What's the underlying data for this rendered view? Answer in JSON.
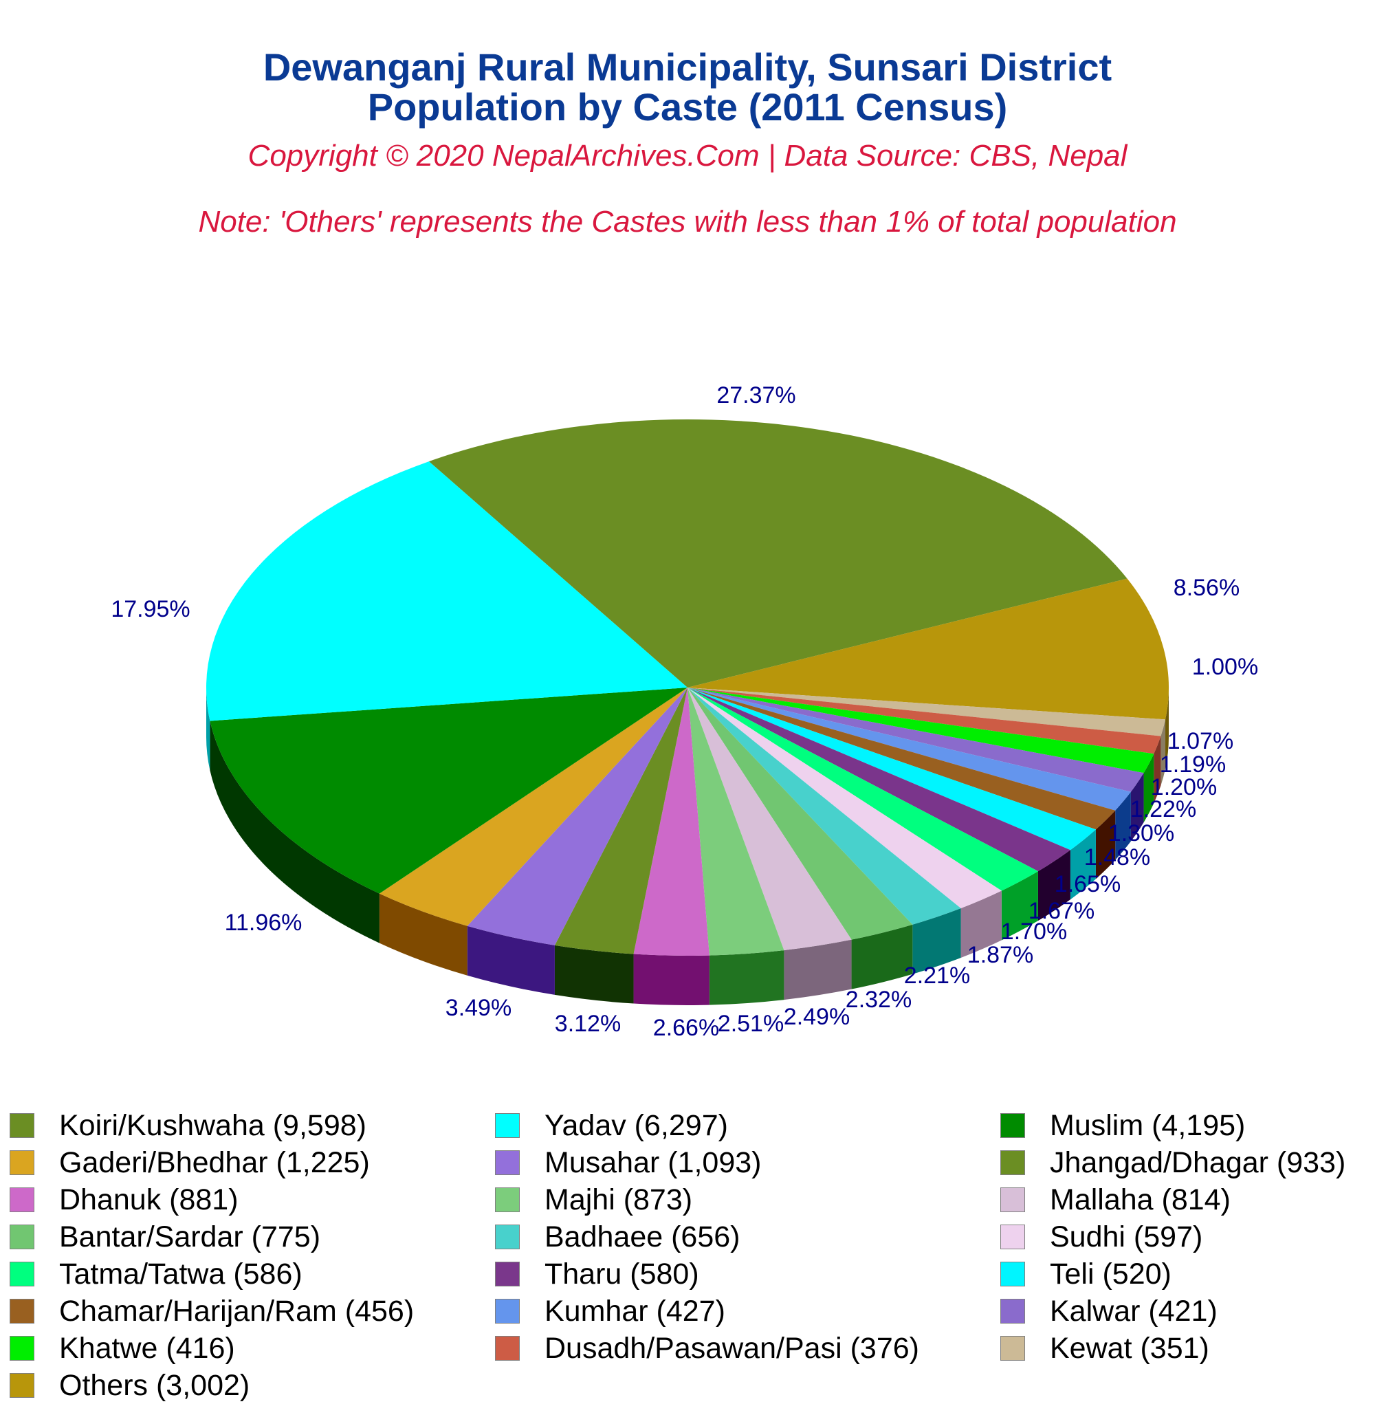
{
  "header": {
    "title_line1": "Dewanganj Rural Municipality, Sunsari District",
    "title_line2": "Population by Caste (2011 Census)",
    "copyright": "Copyright © 2020 NepalArchives.Com | Data Source: CBS, Nepal",
    "note": "Note: 'Others' represents the Castes with less than 1% of total population"
  },
  "colors": {
    "title": "#0a3a94",
    "subtitle": "#d9173e",
    "pct_label": "#00008b"
  },
  "chart_data": {
    "type": "pie",
    "style": "3d",
    "title": "Dewanganj Rural Municipality, Sunsari District Population by Caste (2011 Census)",
    "subtitle": "Copyright © 2020 NepalArchives.Com | Data Source: CBS, Nepal",
    "note": "Note: 'Others' represents the Castes with less than 1% of total population",
    "legend_position": "bottom",
    "slices": [
      {
        "label": "Koiri/Kushwaha",
        "value": 9598,
        "value_label": "9,598",
        "pct": "27.37%",
        "color": "#6b8e23",
        "side": "#3b5213"
      },
      {
        "label": "Others",
        "value": 3002,
        "value_label": "3,002",
        "pct": "8.56%",
        "color": "#b8960b",
        "side": "#6e5a07"
      },
      {
        "label": "Kewat",
        "value": 351,
        "value_label": "351",
        "pct": "1.00%",
        "color": "#ccba96",
        "side": "#8a7d63"
      },
      {
        "label": "Dusadh/Pasawan/Pasi",
        "value": 376,
        "value_label": "376",
        "pct": "1.07%",
        "color": "#cd5c45",
        "side": "#7f3426"
      },
      {
        "label": "Khatwe",
        "value": 416,
        "value_label": "416",
        "pct": "1.19%",
        "color": "#00ee00",
        "side": "#008f00"
      },
      {
        "label": "Kalwar",
        "value": 421,
        "value_label": "421",
        "pct": "1.20%",
        "color": "#8a6bcc",
        "side": "#2a1470"
      },
      {
        "label": "Kumhar",
        "value": 427,
        "value_label": "427",
        "pct": "1.22%",
        "color": "#6495ed",
        "side": "#0c3c8c"
      },
      {
        "label": "Chamar/Harijan/Ram",
        "value": 456,
        "value_label": "456",
        "pct": "1.30%",
        "color": "#996020",
        "side": "#421200"
      },
      {
        "label": "Teli",
        "value": 520,
        "value_label": "520",
        "pct": "1.48%",
        "color": "#00f5ff",
        "side": "#00a0a8"
      },
      {
        "label": "Tharu",
        "value": 580,
        "value_label": "580",
        "pct": "1.65%",
        "color": "#7a358b",
        "side": "#22002e"
      },
      {
        "label": "Tatma/Tatwa",
        "value": 586,
        "value_label": "586",
        "pct": "1.67%",
        "color": "#00ff7f",
        "side": "#00a028"
      },
      {
        "label": "Sudhi",
        "value": 597,
        "value_label": "597",
        "pct": "1.70%",
        "color": "#eed2ee",
        "side": "#957893"
      },
      {
        "label": "Badhaee",
        "value": 656,
        "value_label": "656",
        "pct": "1.87%",
        "color": "#48d1cc",
        "side": "#027873"
      },
      {
        "label": "Bantar/Sardar",
        "value": 775,
        "value_label": "775",
        "pct": "2.21%",
        "color": "#71c671",
        "side": "#1a6a1a"
      },
      {
        "label": "Mallaha",
        "value": 814,
        "value_label": "814",
        "pct": "2.32%",
        "color": "#d8bfd8",
        "side": "#7c667c"
      },
      {
        "label": "Majhi",
        "value": 873,
        "value_label": "873",
        "pct": "2.49%",
        "color": "#7ccd7c",
        "side": "#217421"
      },
      {
        "label": "Dhanuk",
        "value": 881,
        "value_label": "881",
        "pct": "2.51%",
        "color": "#cd69c9",
        "side": "#731070"
      },
      {
        "label": "Jhangad/Dhagar",
        "value": 933,
        "value_label": "933",
        "pct": "2.66%",
        "color": "#6b8e23",
        "side": "#113303"
      },
      {
        "label": "Musahar",
        "value": 1093,
        "value_label": "1,093",
        "pct": "3.12%",
        "color": "#9370db",
        "side": "#3c1780"
      },
      {
        "label": "Gaderi/Bhedhar",
        "value": 1225,
        "value_label": "1,225",
        "pct": "3.49%",
        "color": "#daa520",
        "side": "#7f4a00"
      },
      {
        "label": "Muslim",
        "value": 4195,
        "value_label": "4,195",
        "pct": "11.96%",
        "color": "#008b00",
        "side": "#003800"
      },
      {
        "label": "Yadav",
        "value": 6297,
        "value_label": "6,297",
        "pct": "17.95%",
        "color": "#00ffff",
        "side": "#00a0a8"
      }
    ]
  },
  "legend": {
    "items": [
      {
        "text": "Koiri/Kushwaha (9,598)",
        "color": "#6b8e23",
        "col": 0,
        "row": 0
      },
      {
        "text": "Yadav (6,297)",
        "color": "#00ffff",
        "col": 1,
        "row": 0
      },
      {
        "text": "Muslim (4,195)",
        "color": "#008b00",
        "col": 2,
        "row": 0
      },
      {
        "text": "Gaderi/Bhedhar (1,225)",
        "color": "#daa520",
        "col": 0,
        "row": 1
      },
      {
        "text": "Musahar (1,093)",
        "color": "#9370db",
        "col": 1,
        "row": 1
      },
      {
        "text": "Jhangad/Dhagar (933)",
        "color": "#6b8e23",
        "col": 2,
        "row": 1
      },
      {
        "text": "Dhanuk (881)",
        "color": "#cd69c9",
        "col": 0,
        "row": 2
      },
      {
        "text": "Majhi (873)",
        "color": "#7ccd7c",
        "col": 1,
        "row": 2
      },
      {
        "text": "Mallaha (814)",
        "color": "#d8bfd8",
        "col": 2,
        "row": 2
      },
      {
        "text": "Bantar/Sardar (775)",
        "color": "#71c671",
        "col": 0,
        "row": 3
      },
      {
        "text": "Badhaee (656)",
        "color": "#48d1cc",
        "col": 1,
        "row": 3
      },
      {
        "text": "Sudhi (597)",
        "color": "#eed2ee",
        "col": 2,
        "row": 3
      },
      {
        "text": "Tatma/Tatwa (586)",
        "color": "#00ff7f",
        "col": 0,
        "row": 4
      },
      {
        "text": "Tharu (580)",
        "color": "#7a378b",
        "col": 1,
        "row": 4
      },
      {
        "text": "Teli (520)",
        "color": "#00f5ff",
        "col": 2,
        "row": 4
      },
      {
        "text": "Chamar/Harijan/Ram (456)",
        "color": "#996020",
        "col": 0,
        "row": 5
      },
      {
        "text": "Kumhar (427)",
        "color": "#6495ed",
        "col": 1,
        "row": 5
      },
      {
        "text": "Kalwar (421)",
        "color": "#8a6bcc",
        "col": 2,
        "row": 5
      },
      {
        "text": "Khatwe (416)",
        "color": "#00ee00",
        "col": 0,
        "row": 6
      },
      {
        "text": "Dusadh/Pasawan/Pasi (376)",
        "color": "#cd5c45",
        "col": 1,
        "row": 6
      },
      {
        "text": "Kewat (351)",
        "color": "#ccba96",
        "col": 2,
        "row": 6
      },
      {
        "text": "Others (3,002)",
        "color": "#b8960b",
        "col": 0,
        "row": 7
      }
    ]
  }
}
